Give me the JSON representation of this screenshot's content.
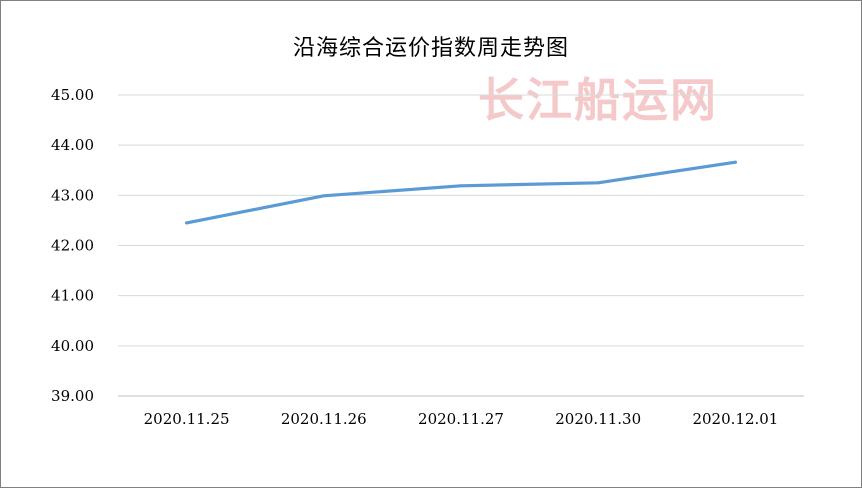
{
  "chart_data": {
    "type": "line",
    "title": "沿海综合运价指数周走势图",
    "watermark": "长江船运网",
    "categories": [
      "2020.11.25",
      "2020.11.26",
      "2020.11.27",
      "2020.11.30",
      "2020.12.01"
    ],
    "series": [
      {
        "values": [
          42.45,
          42.99,
          43.19,
          43.25,
          43.66
        ],
        "color": "#5b9bd5"
      }
    ],
    "xlabel": "",
    "ylabel": "",
    "ylim": [
      39.0,
      45.0
    ],
    "yticks": [
      "45.00",
      "44.00",
      "43.00",
      "42.00",
      "41.00",
      "40.00",
      "39.00"
    ],
    "ytick_values": [
      45,
      44,
      43,
      42,
      41,
      40,
      39
    ],
    "grid": true,
    "legend": "none"
  }
}
